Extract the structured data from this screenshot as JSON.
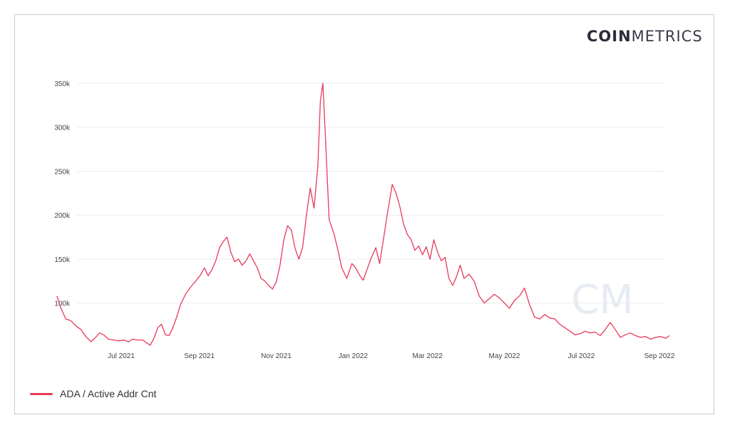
{
  "brand": {
    "bold": "COIN",
    "light": "METRICS"
  },
  "watermark": "CM",
  "colors": {
    "series": "#e8395a",
    "grid": "#ebebeb",
    "text": "#444444"
  },
  "chart_data": {
    "type": "line",
    "title": "",
    "xlabel": "",
    "ylabel": "",
    "ylim": [
      52000,
      350000
    ],
    "x_ticks": [
      "Jul 2021",
      "Sep 2021",
      "Nov 2021",
      "Jan 2022",
      "Mar 2022",
      "May 2022",
      "Jul 2022",
      "Sep 2022"
    ],
    "y_ticks": [
      "100k",
      "150k",
      "200k",
      "250k",
      "300k",
      "350k"
    ],
    "y_tick_values": [
      100000,
      150000,
      200000,
      250000,
      300000,
      350000
    ],
    "grid": "horizontal",
    "legend_position": "bottom-left",
    "series": [
      {
        "name": "ADA / Active Addr Cnt",
        "points": [
          [
            "2021-05-11",
            108000
          ],
          [
            "2021-05-14",
            95000
          ],
          [
            "2021-05-18",
            82000
          ],
          [
            "2021-05-22",
            80000
          ],
          [
            "2021-05-26",
            74000
          ],
          [
            "2021-05-30",
            70000
          ],
          [
            "2021-06-03",
            62000
          ],
          [
            "2021-06-07",
            56000
          ],
          [
            "2021-06-10",
            60000
          ],
          [
            "2021-06-14",
            66000
          ],
          [
            "2021-06-17",
            64000
          ],
          [
            "2021-06-21",
            59000
          ],
          [
            "2021-06-25",
            58000
          ],
          [
            "2021-06-29",
            57000
          ],
          [
            "2021-07-03",
            58000
          ],
          [
            "2021-07-07",
            56000
          ],
          [
            "2021-07-10",
            59000
          ],
          [
            "2021-07-14",
            58000
          ],
          [
            "2021-07-18",
            58000
          ],
          [
            "2021-07-21",
            55000
          ],
          [
            "2021-07-24",
            52000
          ],
          [
            "2021-07-27",
            60000
          ],
          [
            "2021-07-30",
            72000
          ],
          [
            "2021-08-02",
            76000
          ],
          [
            "2021-08-05",
            64000
          ],
          [
            "2021-08-08",
            63000
          ],
          [
            "2021-08-11",
            72000
          ],
          [
            "2021-08-14",
            84000
          ],
          [
            "2021-08-17",
            98000
          ],
          [
            "2021-08-21",
            110000
          ],
          [
            "2021-08-25",
            118000
          ],
          [
            "2021-08-29",
            125000
          ],
          [
            "2021-09-02",
            132000
          ],
          [
            "2021-09-05",
            140000
          ],
          [
            "2021-09-08",
            131000
          ],
          [
            "2021-09-11",
            138000
          ],
          [
            "2021-09-14",
            148000
          ],
          [
            "2021-09-17",
            163000
          ],
          [
            "2021-09-20",
            170000
          ],
          [
            "2021-09-23",
            175000
          ],
          [
            "2021-09-26",
            158000
          ],
          [
            "2021-09-29",
            147000
          ],
          [
            "2021-10-02",
            150000
          ],
          [
            "2021-10-05",
            143000
          ],
          [
            "2021-10-08",
            148000
          ],
          [
            "2021-10-11",
            156000
          ],
          [
            "2021-10-14",
            148000
          ],
          [
            "2021-10-17",
            140000
          ],
          [
            "2021-10-20",
            128000
          ],
          [
            "2021-10-23",
            125000
          ],
          [
            "2021-10-26",
            120000
          ],
          [
            "2021-10-29",
            116000
          ],
          [
            "2021-11-01",
            124000
          ],
          [
            "2021-11-04",
            143000
          ],
          [
            "2021-11-07",
            172000
          ],
          [
            "2021-11-10",
            188000
          ],
          [
            "2021-11-13",
            183000
          ],
          [
            "2021-11-16",
            162000
          ],
          [
            "2021-11-19",
            150000
          ],
          [
            "2021-11-22",
            164000
          ],
          [
            "2021-11-25",
            200000
          ],
          [
            "2021-11-28",
            231000
          ],
          [
            "2021-12-01",
            208000
          ],
          [
            "2021-12-04",
            255000
          ],
          [
            "2021-12-06",
            330000
          ],
          [
            "2021-12-08",
            350000
          ],
          [
            "2021-12-10",
            290000
          ],
          [
            "2021-12-13",
            195000
          ],
          [
            "2021-12-17",
            178000
          ],
          [
            "2021-12-20",
            160000
          ],
          [
            "2021-12-23",
            140000
          ],
          [
            "2021-12-27",
            128000
          ],
          [
            "2021-12-31",
            145000
          ],
          [
            "2022-01-03",
            140000
          ],
          [
            "2022-01-06",
            132000
          ],
          [
            "2022-01-09",
            126000
          ],
          [
            "2022-01-12",
            138000
          ],
          [
            "2022-01-15",
            150000
          ],
          [
            "2022-01-19",
            163000
          ],
          [
            "2022-01-22",
            145000
          ],
          [
            "2022-01-25",
            172000
          ],
          [
            "2022-01-28",
            200000
          ],
          [
            "2022-02-01",
            235000
          ],
          [
            "2022-02-04",
            225000
          ],
          [
            "2022-02-07",
            210000
          ],
          [
            "2022-02-10",
            190000
          ],
          [
            "2022-02-13",
            178000
          ],
          [
            "2022-02-16",
            172000
          ],
          [
            "2022-02-19",
            160000
          ],
          [
            "2022-02-22",
            165000
          ],
          [
            "2022-02-25",
            155000
          ],
          [
            "2022-02-28",
            164000
          ],
          [
            "2022-03-03",
            150000
          ],
          [
            "2022-03-06",
            172000
          ],
          [
            "2022-03-09",
            158000
          ],
          [
            "2022-03-12",
            148000
          ],
          [
            "2022-03-15",
            152000
          ],
          [
            "2022-03-18",
            128000
          ],
          [
            "2022-03-21",
            120000
          ],
          [
            "2022-03-24",
            130000
          ],
          [
            "2022-03-27",
            143000
          ],
          [
            "2022-03-30",
            128000
          ],
          [
            "2022-04-03",
            133000
          ],
          [
            "2022-04-07",
            125000
          ],
          [
            "2022-04-11",
            108000
          ],
          [
            "2022-04-15",
            100000
          ],
          [
            "2022-04-19",
            105000
          ],
          [
            "2022-04-23",
            110000
          ],
          [
            "2022-04-27",
            106000
          ],
          [
            "2022-05-01",
            100000
          ],
          [
            "2022-05-05",
            94000
          ],
          [
            "2022-05-09",
            103000
          ],
          [
            "2022-05-13",
            108000
          ],
          [
            "2022-05-17",
            117000
          ],
          [
            "2022-05-21",
            98000
          ],
          [
            "2022-05-25",
            84000
          ],
          [
            "2022-05-29",
            82000
          ],
          [
            "2022-06-02",
            87000
          ],
          [
            "2022-06-06",
            83000
          ],
          [
            "2022-06-10",
            82000
          ],
          [
            "2022-06-14",
            76000
          ],
          [
            "2022-06-18",
            72000
          ],
          [
            "2022-06-22",
            68000
          ],
          [
            "2022-06-26",
            64000
          ],
          [
            "2022-06-30",
            65000
          ],
          [
            "2022-07-04",
            68000
          ],
          [
            "2022-07-08",
            66000
          ],
          [
            "2022-07-12",
            67000
          ],
          [
            "2022-07-16",
            63000
          ],
          [
            "2022-07-20",
            70000
          ],
          [
            "2022-07-24",
            78000
          ],
          [
            "2022-07-28",
            70000
          ],
          [
            "2022-08-01",
            61000
          ],
          [
            "2022-08-05",
            64000
          ],
          [
            "2022-08-09",
            66000
          ],
          [
            "2022-08-13",
            63000
          ],
          [
            "2022-08-17",
            61000
          ],
          [
            "2022-08-21",
            62000
          ],
          [
            "2022-08-25",
            59000
          ],
          [
            "2022-08-29",
            61000
          ],
          [
            "2022-09-02",
            62000
          ],
          [
            "2022-09-06",
            60000
          ],
          [
            "2022-09-09",
            63000
          ]
        ]
      }
    ]
  }
}
